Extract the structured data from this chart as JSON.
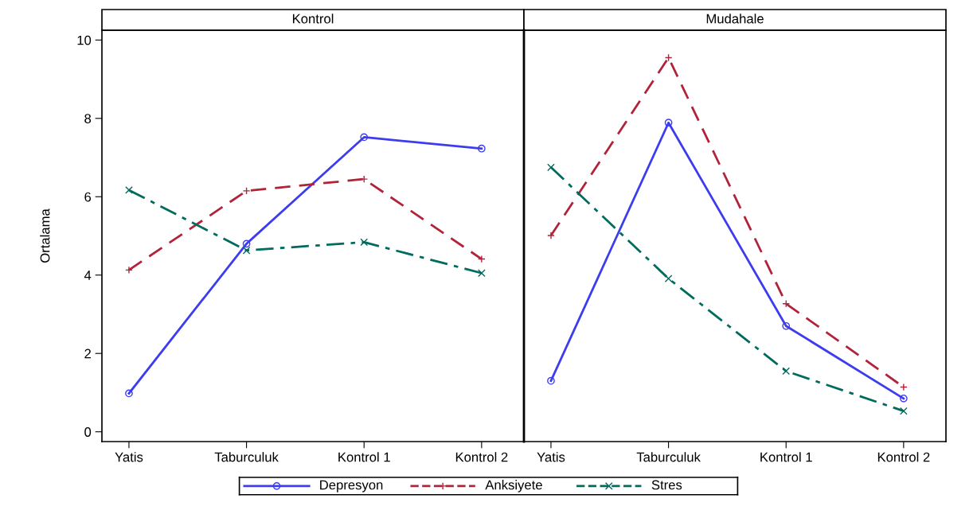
{
  "chart_data": [
    {
      "type": "line",
      "title": "Kontrol",
      "ylabel": "Ortalama",
      "categories": [
        "Yatis",
        "Taburculuk",
        "Kontrol 1",
        "Kontrol 2"
      ],
      "ylim": [
        -0.25,
        10.25
      ],
      "yticks": [
        0,
        2,
        4,
        6,
        8,
        10
      ],
      "grid": false,
      "legend": "bottom",
      "series": [
        {
          "name": "Depresyon",
          "color": "#3c3cf0",
          "marker": "circle",
          "line_style": "solid",
          "values": [
            0.98,
            4.8,
            7.52,
            7.23
          ]
        },
        {
          "name": "Anksiyete",
          "color": "#b2233a",
          "marker": "plus",
          "line_style": "dashed",
          "values": [
            4.13,
            6.15,
            6.45,
            4.41
          ]
        },
        {
          "name": "Stres",
          "color": "#006b5e",
          "marker": "x",
          "line_style": "dashdot",
          "values": [
            6.17,
            4.63,
            4.84,
            4.05
          ]
        }
      ]
    },
    {
      "type": "line",
      "title": "Mudahale",
      "categories": [
        "Yatis",
        "Taburculuk",
        "Kontrol 1",
        "Kontrol 2"
      ],
      "ylim": [
        -0.25,
        10.25
      ],
      "tick_labels": "x",
      "grid": false,
      "series": [
        {
          "name": "Depresyon",
          "color": "#3c3cf0",
          "marker": "circle",
          "line_style": "solid",
          "values": [
            1.3,
            7.89,
            2.7,
            0.85
          ]
        },
        {
          "name": "Anksiyete",
          "color": "#b2233a",
          "marker": "plus",
          "line_style": "dashed",
          "values": [
            5.01,
            9.55,
            3.27,
            1.14
          ]
        },
        {
          "name": "Stres",
          "color": "#006b5e",
          "marker": "x",
          "line_style": "dashdot",
          "values": [
            6.75,
            3.91,
            1.55,
            0.53
          ]
        }
      ]
    }
  ]
}
